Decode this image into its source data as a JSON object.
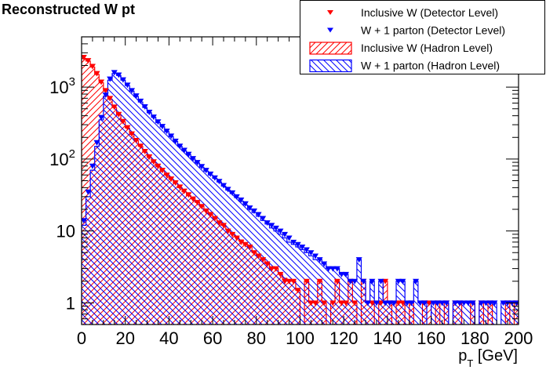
{
  "chart_data": {
    "type": "histogram",
    "title": "Reconstructed W pt",
    "xlabel": "p_T [GeV]",
    "xlabel_main": "p",
    "xlabel_sub": "T",
    "xlabel_unit": " [GeV]",
    "ylabel": "",
    "yscale": "log",
    "xlim": [
      0,
      200
    ],
    "ylim": [
      0.5,
      5000
    ],
    "bin_width": 2,
    "x_ticks": [
      0,
      20,
      40,
      60,
      80,
      100,
      120,
      140,
      160,
      180,
      200
    ],
    "x_tick_labels": [
      "0",
      "20",
      "40",
      "60",
      "80",
      "100",
      "120",
      "140",
      "160",
      "180",
      "200"
    ],
    "y_ticks": [
      1,
      10,
      100,
      1000
    ],
    "y_tick_labels": [
      {
        "base": "1",
        "exp": ""
      },
      {
        "base": "10",
        "exp": ""
      },
      {
        "base": "10",
        "exp": "2"
      },
      {
        "base": "10",
        "exp": "3"
      }
    ],
    "legend": {
      "placement": "top-right",
      "entries": [
        {
          "label": "Inclusive W (Detector Level)",
          "style": "marker",
          "color": "#ff0000"
        },
        {
          "label": "W + 1 parton (Detector Level)",
          "style": "marker",
          "color": "#0000ff"
        },
        {
          "label": "Inclusive W (Hadron Level)",
          "style": "hatch-fwd",
          "color": "#ff0000"
        },
        {
          "label": "W + 1 parton (Hadron Level)",
          "style": "hatch-back",
          "color": "#0000ff"
        }
      ]
    },
    "series": [
      {
        "name": "Inclusive W (Hadron Level)",
        "kind": "hist",
        "color": "#ff0000",
        "hatch": "forward",
        "values": [
          2500,
          2300,
          1900,
          1500,
          1150,
          880,
          680,
          520,
          410,
          330,
          270,
          220,
          180,
          150,
          125,
          105,
          90,
          78,
          68,
          60,
          52,
          46,
          40,
          35,
          31,
          28,
          25,
          22,
          19,
          17,
          15,
          13.5,
          12,
          10.5,
          9.5,
          8.5,
          7.5,
          6.5,
          6,
          5,
          4.5,
          4,
          3.5,
          3,
          3,
          2.5,
          2.2,
          2,
          2,
          1.5,
          0,
          2,
          1,
          1,
          2,
          1,
          0,
          1,
          2,
          1,
          1,
          2,
          1,
          0,
          2,
          1,
          1,
          0,
          1,
          2,
          1,
          0,
          1,
          1,
          0,
          1,
          0,
          0,
          1,
          1,
          0,
          1,
          0,
          1,
          0,
          1,
          1,
          0,
          0,
          1,
          0,
          1,
          0,
          1,
          0,
          0,
          0,
          1,
          0,
          1
        ]
      },
      {
        "name": "W + 1 parton (Hadron Level)",
        "kind": "hist",
        "color": "#0000ff",
        "hatch": "backward",
        "values": [
          12,
          30,
          70,
          150,
          350,
          750,
          1250,
          1550,
          1450,
          1250,
          1050,
          880,
          740,
          620,
          520,
          440,
          380,
          320,
          280,
          240,
          205,
          175,
          150,
          130,
          115,
          100,
          88,
          77,
          68,
          60,
          54,
          48,
          42,
          37,
          33,
          29,
          26,
          23,
          20,
          18,
          16,
          14,
          12.5,
          11,
          10,
          9,
          8,
          7,
          6.5,
          6,
          5.5,
          5,
          4.5,
          4,
          4,
          3.5,
          3,
          3,
          3,
          2.5,
          2.5,
          2,
          2,
          4,
          2,
          1,
          2,
          1,
          2,
          1,
          1,
          1,
          2,
          2,
          1,
          1,
          2,
          1,
          1,
          0,
          1,
          1,
          1,
          1,
          0,
          1,
          1,
          1,
          1,
          1,
          0,
          1,
          1,
          1,
          1,
          0,
          1,
          1,
          1,
          1
        ]
      },
      {
        "name": "Inclusive W (Detector Level)",
        "kind": "markers",
        "color": "#ff0000",
        "marker": "triangle-down",
        "values": [
          2600,
          2350,
          1950,
          1550,
          1180,
          900,
          700,
          530,
          420,
          335,
          275,
          225,
          182,
          152,
          128,
          108,
          92,
          80,
          70,
          60,
          53,
          47,
          41,
          36,
          32,
          28,
          25,
          22,
          19,
          17,
          15,
          13,
          12,
          10,
          9,
          8,
          7,
          6.5,
          6,
          5,
          4.5,
          4,
          3.5,
          3,
          3,
          2.5,
          2,
          2,
          2,
          1.5,
          0,
          2,
          1,
          1,
          2,
          1,
          0,
          1,
          2,
          1,
          1,
          2,
          1,
          0,
          2,
          1,
          1,
          0,
          1,
          2,
          1,
          0,
          1,
          1,
          0,
          1,
          0,
          0,
          1,
          1,
          0,
          1,
          0,
          1,
          0,
          1,
          1,
          0,
          0,
          1,
          0,
          1,
          0,
          1,
          0,
          0,
          0,
          1,
          0,
          1
        ]
      },
      {
        "name": "W + 1 parton (Detector Level)",
        "kind": "markers",
        "color": "#0000ff",
        "marker": "triangle-down",
        "values": [
          14,
          35,
          80,
          170,
          380,
          780,
          1300,
          1600,
          1480,
          1270,
          1070,
          900,
          760,
          640,
          535,
          450,
          385,
          330,
          285,
          245,
          210,
          178,
          152,
          133,
          117,
          102,
          90,
          79,
          70,
          62,
          55,
          49,
          43,
          38,
          34,
          30,
          27,
          24,
          21,
          19,
          17,
          15,
          13,
          12,
          11,
          10,
          9,
          8,
          7,
          6.5,
          6,
          5.5,
          5,
          4.5,
          4,
          3.5,
          3,
          3,
          3,
          2.5,
          2.5,
          2,
          2,
          4,
          2,
          1,
          2,
          1,
          2,
          1,
          1,
          1,
          2,
          2,
          1,
          1,
          2,
          1,
          1,
          0,
          1,
          1,
          1,
          1,
          0,
          1,
          1,
          1,
          1,
          1,
          0,
          1,
          1,
          1,
          1,
          0,
          1,
          1,
          1,
          1
        ]
      }
    ]
  }
}
